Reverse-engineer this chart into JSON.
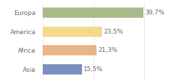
{
  "categories": [
    "Europa",
    "America",
    "Africa",
    "Asia"
  ],
  "values": [
    39.7,
    23.5,
    21.3,
    15.5
  ],
  "labels": [
    "39,7%",
    "23,5%",
    "21,3%",
    "15,5%"
  ],
  "bar_colors": [
    "#a8bb8a",
    "#f5d98b",
    "#e8b48a",
    "#7b8fc0"
  ],
  "xlim": [
    0,
    50
  ],
  "background_color": "#ffffff",
  "label_fontsize": 6.5,
  "tick_fontsize": 6.5,
  "bar_height": 0.55
}
